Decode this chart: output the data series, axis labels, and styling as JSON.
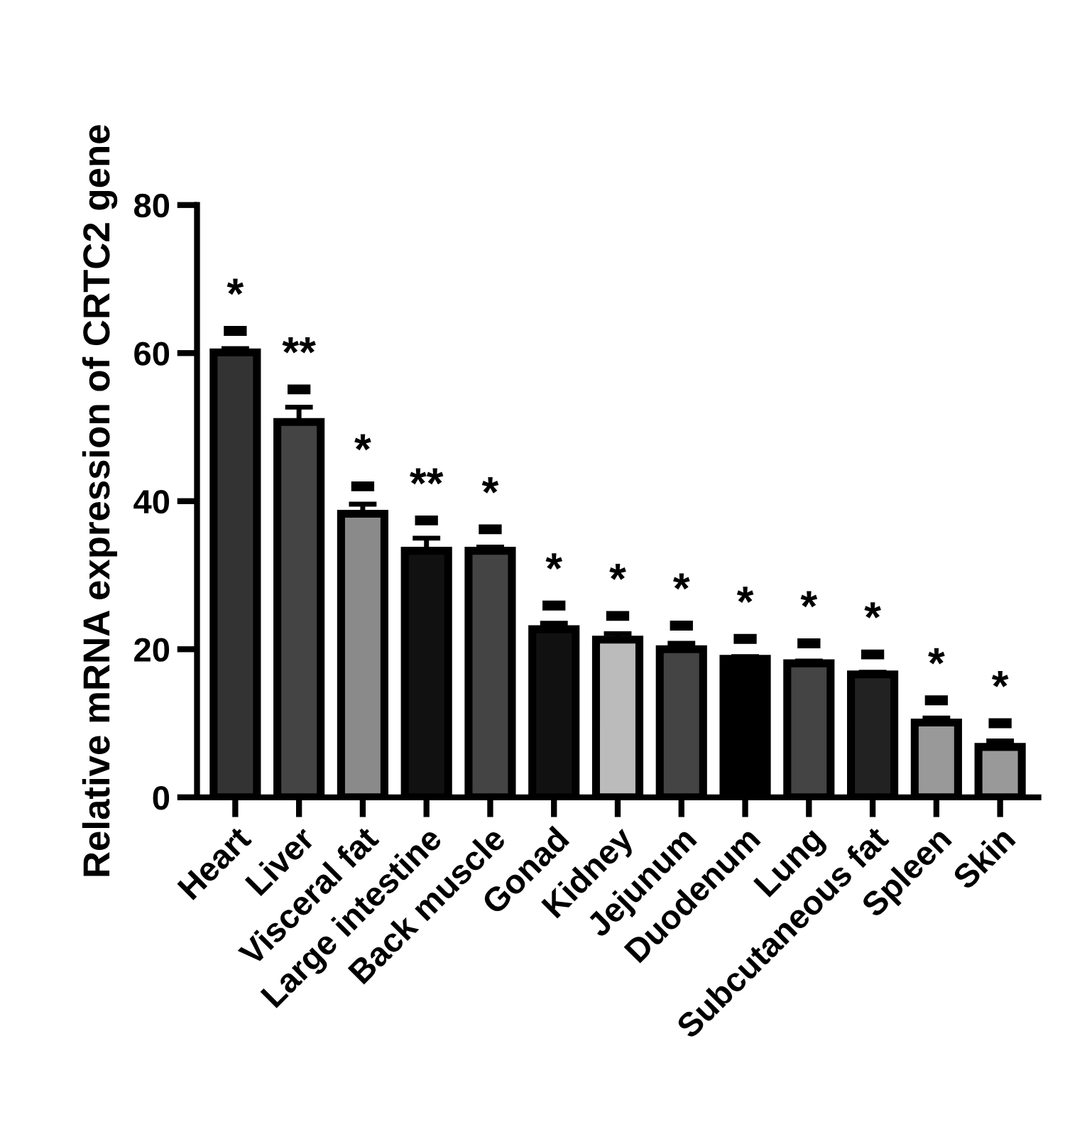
{
  "chart_data": {
    "type": "bar",
    "ylabel": "Relative mRNA expression of CRTC2 gene",
    "categories": [
      "Heart",
      "Liver",
      "Visceral fat",
      "Large intestine",
      "Back muscle",
      "Gonad",
      "Kidney",
      "Jejunum",
      "Duodenum",
      "Lung",
      "Subcutaneous fat",
      "Spleen",
      "Skin"
    ],
    "values": [
      60.1,
      50.7,
      38.3,
      33.3,
      33.3,
      22.7,
      21.3,
      20.0,
      18.7,
      18.1,
      16.6,
      10.1,
      6.8
    ],
    "errors": [
      0.5,
      2.0,
      1.3,
      1.7,
      0.5,
      0.8,
      0.8,
      0.8,
      0.3,
      0.3,
      0.3,
      0.6,
      0.8
    ],
    "colors": [
      "#333333",
      "#444444",
      "#8a8a8a",
      "#111111",
      "#444444",
      "#111111",
      "#bbbbbb",
      "#444444",
      "#000000",
      "#444444",
      "#222222",
      "#999999",
      "#999999"
    ],
    "ylim": [
      0,
      80
    ],
    "yticks": [
      0,
      20,
      40,
      60,
      80
    ],
    "grid": false,
    "legend": false,
    "annotations": [
      "*",
      "**",
      "*",
      "**",
      "*",
      "*",
      "*",
      "*",
      "*",
      "*",
      "*",
      "*",
      "*"
    ]
  }
}
